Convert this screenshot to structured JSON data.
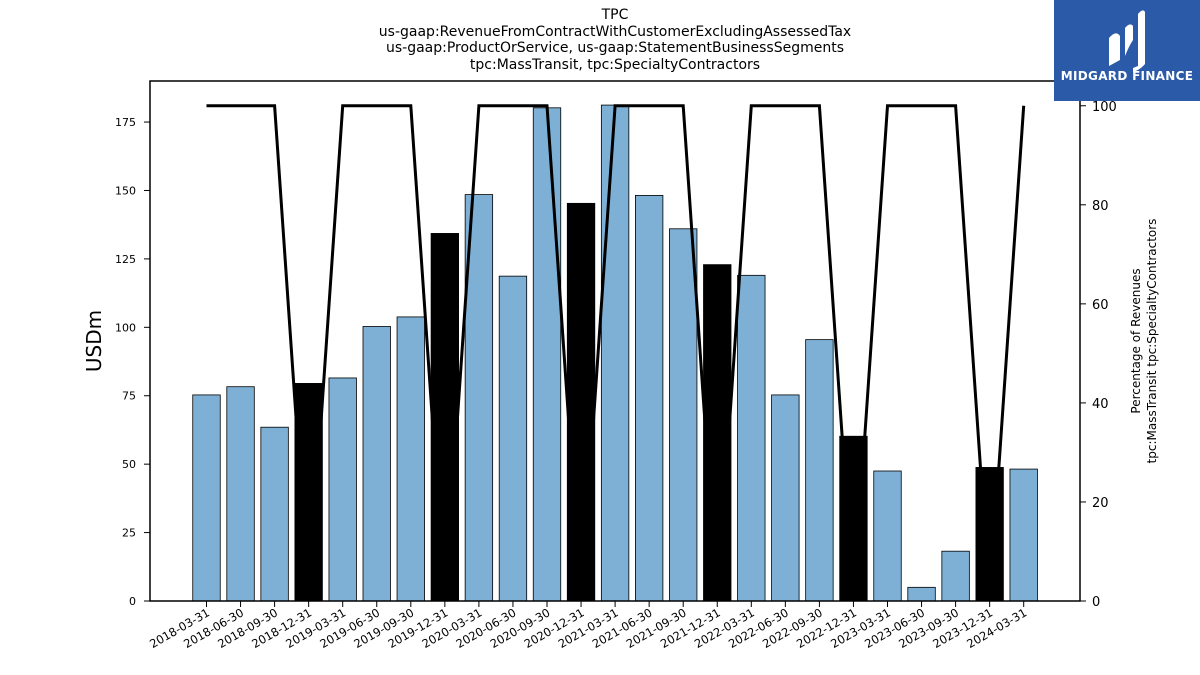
{
  "titles": {
    "line1": "TPC",
    "line2": "us-gaap:RevenueFromContractWithCustomerExcludingAssessedTax",
    "line3": "us-gaap:ProductOrService, us-gaap:StatementBusinessSegments",
    "line4": "tpc:MassTransit, tpc:SpecialtyContractors"
  },
  "logo": {
    "text": "MIDGARD FINANCE",
    "icon": "midgard-logo-icon",
    "color": "#2a5aa8"
  },
  "chart_data": {
    "type": "bar",
    "categories": [
      "2018-03-31",
      "2018-06-30",
      "2018-09-30",
      "2018-12-31",
      "2019-03-31",
      "2019-06-30",
      "2019-09-30",
      "2019-12-31",
      "2020-03-31",
      "2020-06-30",
      "2020-09-30",
      "2020-12-31",
      "2021-03-31",
      "2021-06-30",
      "2021-09-30",
      "2021-12-31",
      "2022-03-31",
      "2022-06-30",
      "2022-09-30",
      "2022-12-31",
      "2023-03-31",
      "2023-06-30",
      "2023-09-30",
      "2023-12-31",
      "2024-03-31"
    ],
    "values": [
      75.3,
      78.3,
      63.5,
      79.5,
      81.5,
      100.3,
      103.8,
      134.3,
      148.5,
      118.7,
      180.2,
      145.3,
      181.2,
      148.2,
      136.0,
      122.9,
      119.0,
      75.3,
      95.5,
      60.2,
      47.5,
      5.0,
      18.2,
      48.8,
      48.2
    ],
    "highlighted": [
      3,
      7,
      11,
      15,
      19,
      23
    ],
    "bar_color": "#7eb0d5",
    "highlight_color": "#000000",
    "ylabel": "USDm",
    "ylim": [
      0,
      190
    ],
    "yticks": [
      0,
      25,
      50,
      75,
      100,
      125,
      150,
      175
    ],
    "y2label_line1": "Percentage of Revenues",
    "y2label_line2": "tpc:MassTransit tpc:SpecialtyContractors",
    "y2lim": [
      0,
      105
    ],
    "y2ticks": [
      0,
      20,
      40,
      60,
      80,
      100
    ],
    "percentage": [
      100,
      100,
      100,
      0,
      100,
      100,
      100,
      0,
      100,
      100,
      100,
      0,
      100,
      100,
      100,
      0,
      100,
      100,
      100,
      0,
      100,
      100,
      100,
      0,
      100
    ],
    "line_color": "#000000",
    "grid": false
  }
}
